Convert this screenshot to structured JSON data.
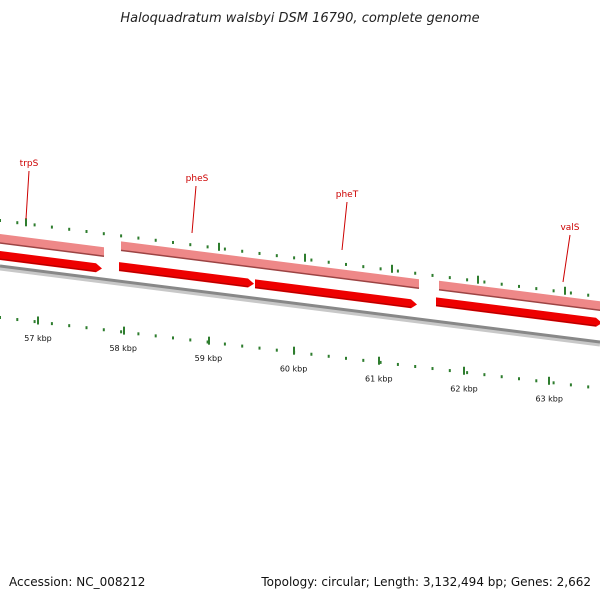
{
  "title": "Haloquadratum walsbyi DSM 16790, complete genome",
  "genes": [
    {
      "name": "trpS"
    },
    {
      "name": "pheS"
    },
    {
      "name": "pheT"
    },
    {
      "name": "valS"
    }
  ],
  "kbp_labels": [
    "57 kbp",
    "58 kbp",
    "59 kbp",
    "60 kbp",
    "61 kbp",
    "62 kbp",
    "63 kbp"
  ],
  "footer": {
    "accession": "Accession: NC_008212",
    "summary": "Topology: circular; Length: 3,132,494 bp; Genes: 2,662"
  },
  "colors": {
    "gene_label": "#cc0000",
    "tick": "#2e7d2e",
    "feature_light": "#ee8888",
    "feature_dark": "#ee0000",
    "backbone": "#8a8a8a"
  }
}
